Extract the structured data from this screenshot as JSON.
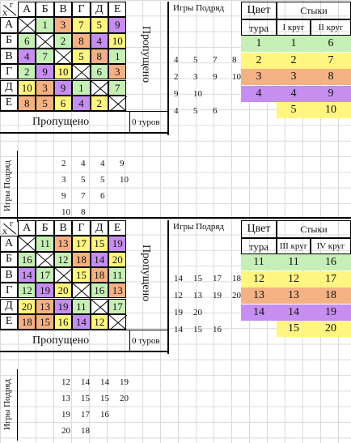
{
  "sections": [
    {
      "corner_x": "x",
      "corner_y": "г",
      "cols": [
        "А",
        "Б",
        "В",
        "Г",
        "Д",
        "Е"
      ],
      "rows": [
        "А",
        "Б",
        "В",
        "Г",
        "Д",
        "Е"
      ],
      "matrix": [
        [
          "X",
          "1",
          "3",
          "7",
          "5",
          "9"
        ],
        [
          "6",
          "X",
          "2",
          "8",
          "4",
          "10"
        ],
        [
          "4",
          "7",
          "X",
          "5",
          "8",
          "1"
        ],
        [
          "2",
          "9",
          "10",
          "X",
          "6",
          "3"
        ],
        [
          "10",
          "3",
          "9",
          "1",
          "X",
          "7"
        ],
        [
          "8",
          "5",
          "6",
          "4",
          "2",
          "X"
        ]
      ],
      "colors": [
        [
          "",
          "g",
          "o",
          "y",
          "y",
          "p"
        ],
        [
          "g",
          "",
          "g",
          "o",
          "p",
          "y"
        ],
        [
          "p",
          "g",
          "",
          "y",
          "o",
          "g"
        ],
        [
          "g",
          "p",
          "y",
          "",
          "g",
          "o"
        ],
        [
          "y",
          "o",
          "p",
          "g",
          "",
          "g"
        ],
        [
          "o",
          "o",
          "y",
          "p",
          "y",
          ""
        ]
      ],
      "skipped_vertical": "Пропущено",
      "skipped_horizontal": "Пропущено",
      "tours_label": "0 туров",
      "games_in_row_label": "Игры Подряд",
      "games_in_row_vertical": "Игры Подряд",
      "games_in_row_right": [
        [
          "4",
          "5",
          "7",
          "8"
        ],
        [
          "2",
          "3",
          "9",
          "10"
        ],
        [
          "9",
          "10"
        ],
        [
          "4",
          "5",
          "6"
        ]
      ],
      "games_in_row_bottom": [
        [
          "2",
          "4",
          "4",
          "9"
        ],
        [
          "3",
          "5",
          "5",
          "10"
        ],
        [
          "9",
          "7",
          "6"
        ],
        [
          "10",
          "8"
        ]
      ],
      "color_header_1": "Цвет",
      "color_header_2": "тура",
      "joints_header": "Стыки",
      "round_a": "I круг",
      "round_b": "II круг",
      "tour_rows": [
        {
          "tour": "1",
          "a": "1",
          "b": "6",
          "c": "g"
        },
        {
          "tour": "2",
          "a": "2",
          "b": "7",
          "c": "y"
        },
        {
          "tour": "3",
          "a": "3",
          "b": "8",
          "c": "o"
        },
        {
          "tour": "4",
          "a": "4",
          "b": "9",
          "c": "p"
        },
        {
          "tour": "",
          "a": "5",
          "b": "10",
          "c": "y"
        }
      ]
    },
    {
      "corner_x": "x",
      "corner_y": "г",
      "cols": [
        "А",
        "Б",
        "В",
        "Г",
        "Д",
        "Е"
      ],
      "rows": [
        "А",
        "Б",
        "В",
        "Г",
        "Д",
        "Е"
      ],
      "matrix": [
        [
          "X",
          "11",
          "13",
          "17",
          "15",
          "19"
        ],
        [
          "16",
          "X",
          "12",
          "18",
          "14",
          "20"
        ],
        [
          "14",
          "17",
          "X",
          "15",
          "18",
          "11"
        ],
        [
          "12",
          "19",
          "20",
          "X",
          "16",
          "13"
        ],
        [
          "20",
          "13",
          "19",
          "11",
          "X",
          "17"
        ],
        [
          "18",
          "15",
          "16",
          "14",
          "12",
          "X"
        ]
      ],
      "colors": [
        [
          "",
          "g",
          "o",
          "y",
          "y",
          "p"
        ],
        [
          "g",
          "",
          "g",
          "o",
          "p",
          "y"
        ],
        [
          "p",
          "g",
          "",
          "y",
          "o",
          "g"
        ],
        [
          "g",
          "p",
          "y",
          "",
          "g",
          "o"
        ],
        [
          "y",
          "o",
          "p",
          "g",
          "",
          "g"
        ],
        [
          "o",
          "o",
          "y",
          "p",
          "y",
          ""
        ]
      ],
      "skipped_vertical": "Пропущено",
      "skipped_horizontal": "Пропущено",
      "tours_label": "0 туров",
      "games_in_row_label": "Игры Подряд",
      "games_in_row_vertical": "Игры Подряд",
      "games_in_row_right": [
        [
          "14",
          "15",
          "17",
          "18"
        ],
        [
          "12",
          "13",
          "19",
          "20"
        ],
        [
          "19",
          "20"
        ],
        [
          "14",
          "15",
          "16"
        ]
      ],
      "games_in_row_bottom": [
        [
          "12",
          "14",
          "14",
          "19"
        ],
        [
          "13",
          "15",
          "15",
          "20"
        ],
        [
          "19",
          "17",
          "16"
        ],
        [
          "20",
          "18"
        ]
      ],
      "color_header_1": "Цвет",
      "color_header_2": "тура",
      "joints_header": "Стыки",
      "round_a": "III круг",
      "round_b": "IV круг",
      "tour_rows": [
        {
          "tour": "11",
          "a": "11",
          "b": "16",
          "c": "g"
        },
        {
          "tour": "12",
          "a": "12",
          "b": "17",
          "c": "y"
        },
        {
          "tour": "13",
          "a": "13",
          "b": "18",
          "c": "o"
        },
        {
          "tour": "14",
          "a": "14",
          "b": "19",
          "c": "p"
        },
        {
          "tour": "",
          "a": "15",
          "b": "20",
          "c": "y"
        }
      ]
    }
  ]
}
